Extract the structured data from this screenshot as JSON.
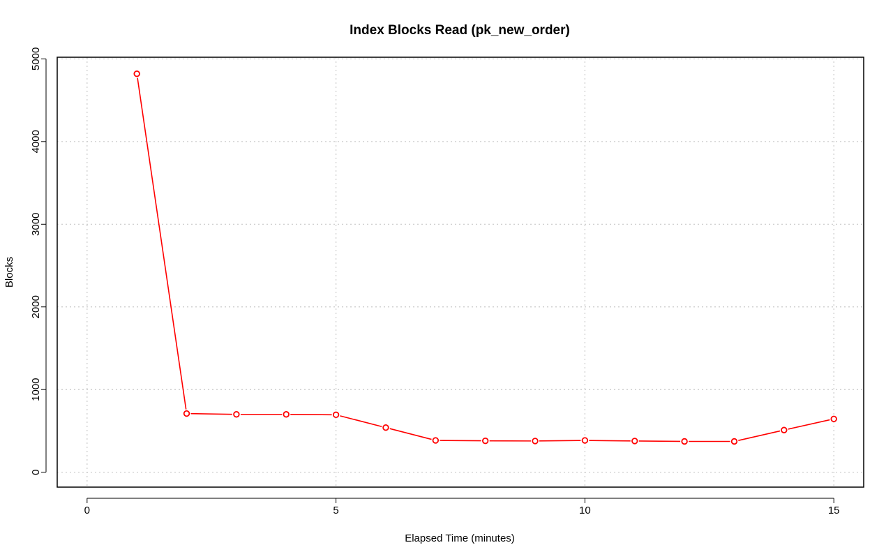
{
  "chart_data": {
    "type": "line",
    "title": "Index Blocks Read (pk_new_order)",
    "xlabel": "Elapsed Time (minutes)",
    "ylabel": "Blocks",
    "xlim": [
      -0.6,
      15.6
    ],
    "ylim": [
      -180,
      5020
    ],
    "xticks": [
      0,
      5,
      10,
      15
    ],
    "yticks": [
      0,
      1000,
      2000,
      3000,
      4000,
      5000
    ],
    "xtick_labels": [
      "0",
      "5",
      "10",
      "15"
    ],
    "ytick_labels": [
      "0",
      "1000",
      "2000",
      "3000",
      "4000",
      "5000"
    ],
    "grid": true,
    "series": [
      {
        "color": "#ff0000",
        "marker": "open-circle",
        "x": [
          1,
          2,
          3,
          4,
          5,
          6,
          7,
          8,
          9,
          10,
          11,
          12,
          13,
          14,
          15
        ],
        "values": [
          4820,
          710,
          700,
          700,
          695,
          540,
          385,
          380,
          378,
          385,
          378,
          373,
          373,
          510,
          645
        ]
      }
    ]
  }
}
